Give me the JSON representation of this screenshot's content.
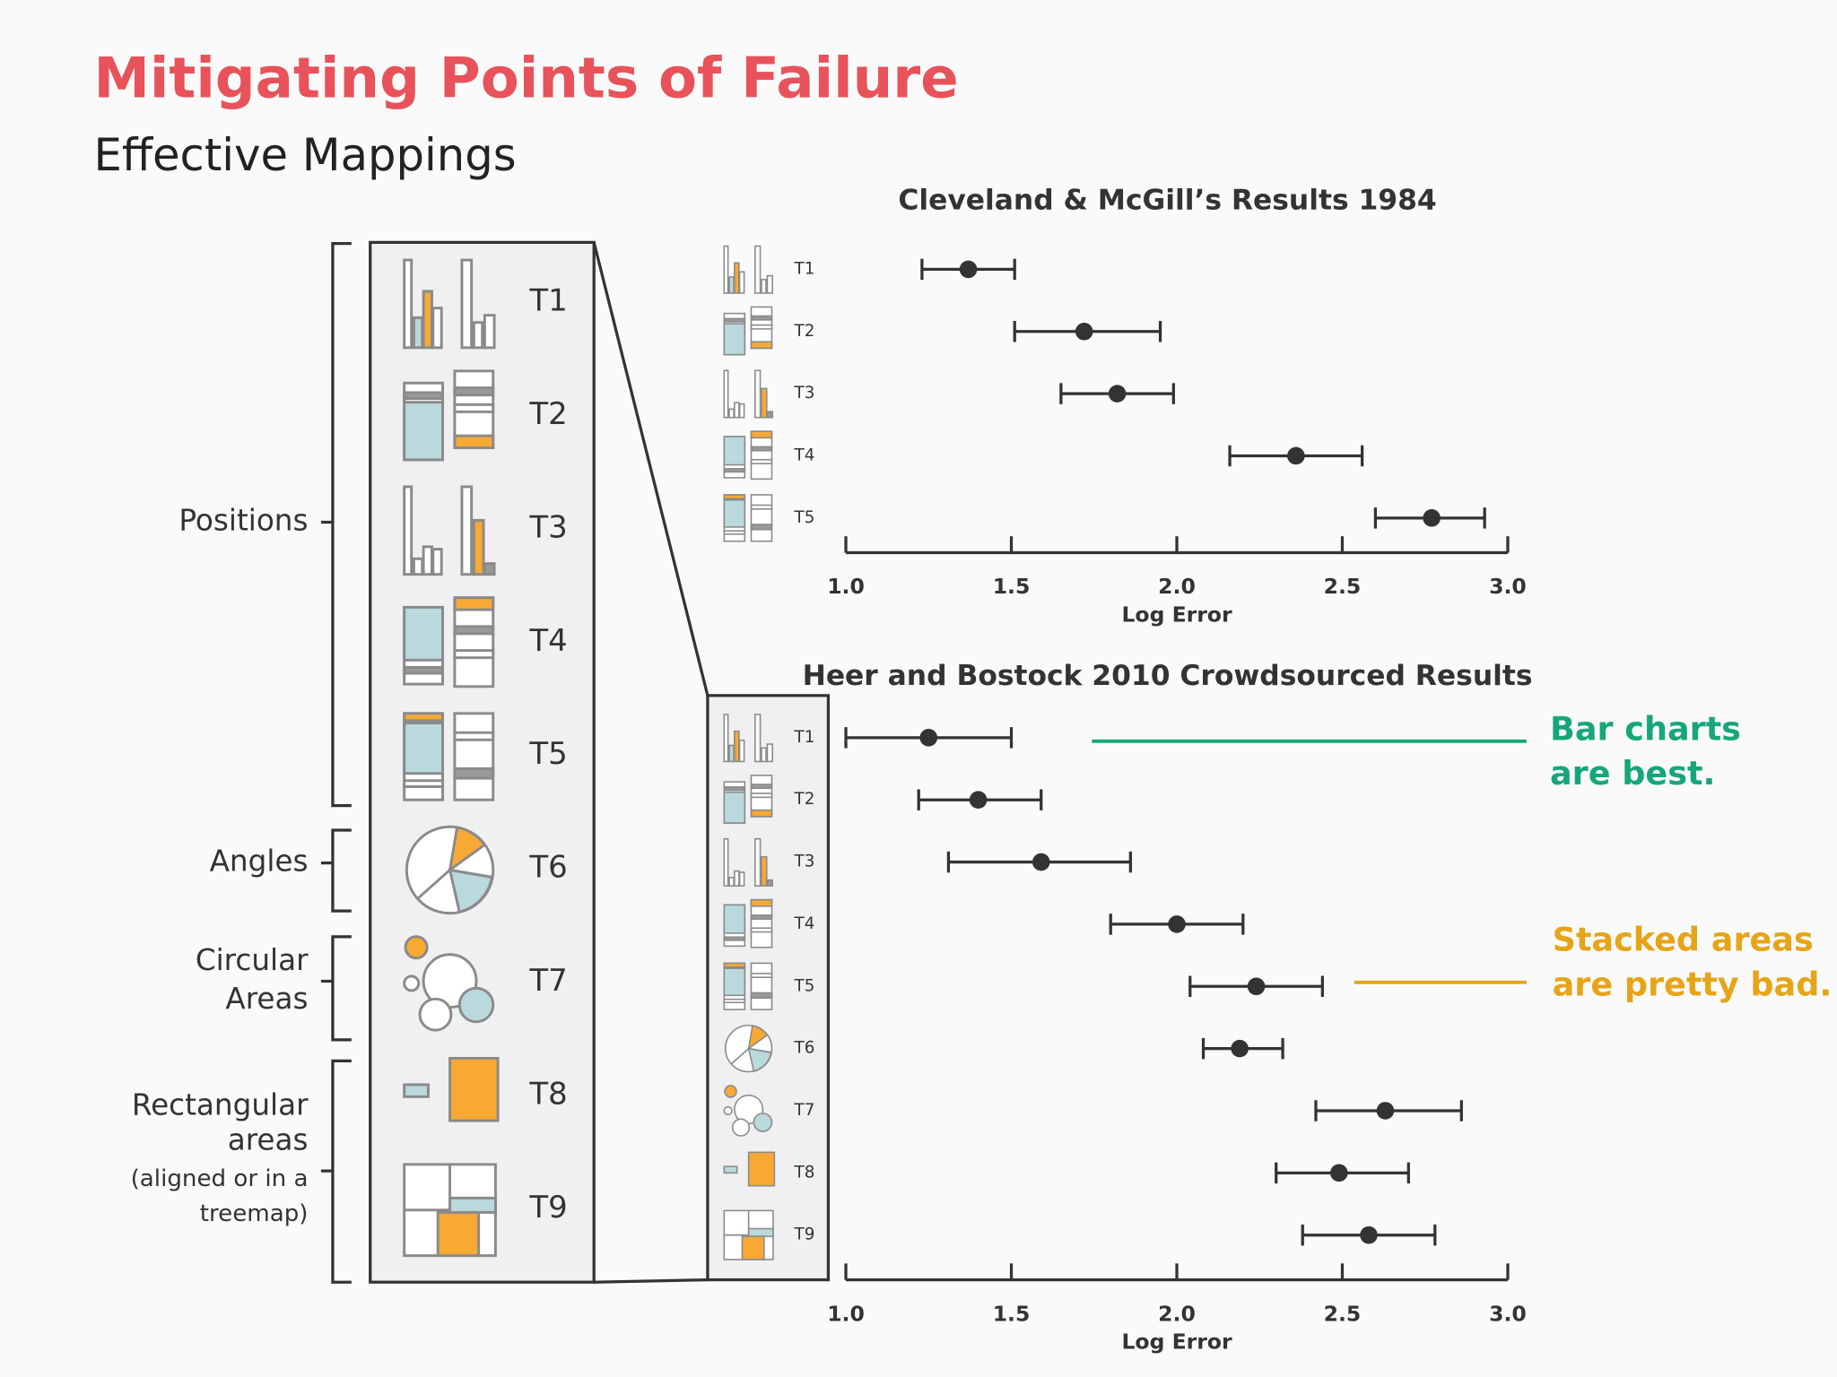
{
  "header": {
    "title": "Mitigating Points of Failure",
    "subtitle": "Effective Mappings"
  },
  "mapping_panel": {
    "items": [
      "T1",
      "T2",
      "T3",
      "T4",
      "T5",
      "T6",
      "T7",
      "T8",
      "T9"
    ],
    "groups": [
      {
        "lines": [
          "Positions"
        ]
      },
      {
        "lines": [
          "Angles"
        ]
      },
      {
        "lines": [
          "Circular",
          "Areas"
        ]
      },
      {
        "lines": [
          "Rectangular",
          "areas",
          "(aligned or in a",
          "treemap)"
        ]
      }
    ]
  },
  "chart_data": [
    {
      "type": "dotplot",
      "title": "Cleveland & McGill’s Results 1984",
      "x_label": "Log Error",
      "categories": [
        "T1",
        "T2",
        "T3",
        "T4",
        "T5"
      ],
      "values": [
        1.37,
        1.72,
        1.82,
        2.36,
        2.77
      ],
      "ci_low": [
        1.23,
        1.51,
        1.65,
        2.16,
        2.6
      ],
      "ci_high": [
        1.51,
        1.95,
        1.99,
        2.56,
        2.93
      ],
      "xlim": [
        1,
        3
      ],
      "xticks": [
        {
          "value": 1,
          "label": "1.0"
        },
        1.5,
        {
          "value": 2,
          "label": "2.0"
        },
        2.5,
        {
          "value": 3,
          "label": "3.0"
        }
      ],
      "color": "#333333"
    },
    {
      "type": "dotplot",
      "title": "Heer and Bostock 2010 Crowdsourced Results",
      "x_label": "Log Error",
      "categories": [
        "T1",
        "T2",
        "T3",
        "T4",
        "T5",
        "T6",
        "T7",
        "T8",
        "T9"
      ],
      "values": [
        1.25,
        1.4,
        1.59,
        2.0,
        2.24,
        2.19,
        2.63,
        2.49,
        2.58
      ],
      "ci_low": [
        1.0,
        1.22,
        1.31,
        1.8,
        2.04,
        2.08,
        2.42,
        2.3,
        2.38
      ],
      "ci_high": [
        1.5,
        1.59,
        1.86,
        2.2,
        2.44,
        2.32,
        2.86,
        2.7,
        2.78
      ],
      "xlim": [
        1,
        3
      ],
      "xticks": [
        {
          "value": 1,
          "label": "1.0"
        },
        1.5,
        {
          "value": 2,
          "label": "2.0"
        },
        2.5,
        {
          "value": 3,
          "label": "3.0"
        }
      ],
      "color": "#333333",
      "annotations": [
        {
          "lines": [
            "Bar charts",
            "are best."
          ],
          "color": "#17a67b"
        },
        {
          "lines": [
            "Stacked areas",
            "are pretty bad."
          ],
          "color": "#e6a417"
        }
      ]
    }
  ]
}
